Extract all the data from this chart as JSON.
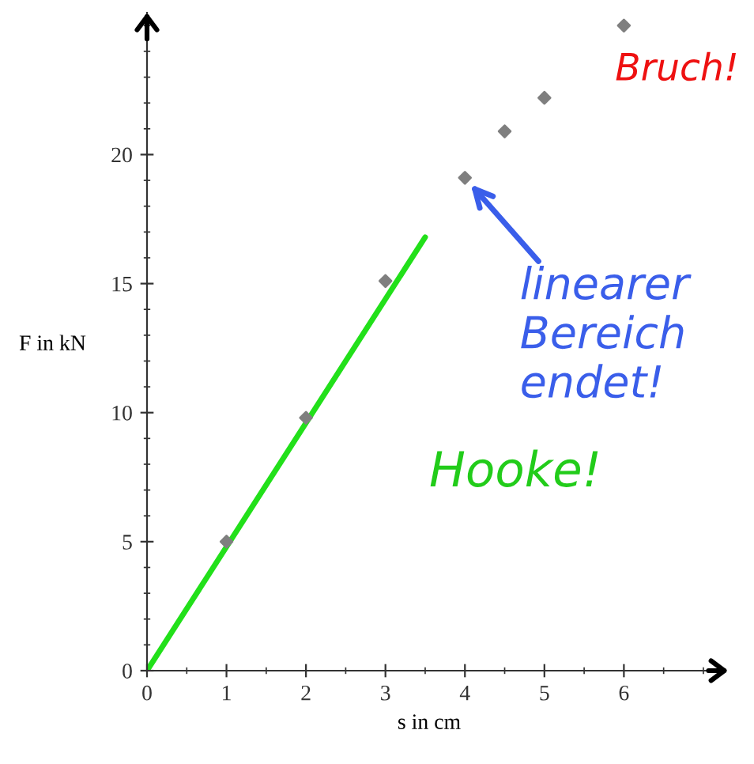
{
  "chart_data": {
    "type": "scatter",
    "xlabel": "s in cm",
    "ylabel": "F in kN",
    "xlim": [
      0,
      7.1
    ],
    "ylim": [
      0,
      25.5
    ],
    "xticks": [
      0,
      1,
      2,
      3,
      4,
      5,
      6
    ],
    "yticks": [
      0,
      5,
      10,
      15,
      20
    ],
    "grid": false,
    "marker": "diamond",
    "series": [
      {
        "color": "#7f7f7f",
        "x": [
          1,
          2,
          3,
          4,
          4.5,
          5,
          6
        ],
        "values": [
          5,
          9.8,
          15.1,
          19.1,
          20.9,
          22.2,
          25.0
        ]
      },
      {
        "type": "line",
        "color": "#22e01a",
        "x": [
          0,
          3.5
        ],
        "values": [
          0,
          16.8
        ],
        "line_style": "solid",
        "marker": "none"
      }
    ],
    "annotations": [
      "Hooke!",
      {
        "text": "linearer\nBereich\nendet!",
        "x": 4,
        "y": 19.1
      },
      {
        "text": "Bruch!",
        "x": 6,
        "y": 25.0
      }
    ]
  }
}
